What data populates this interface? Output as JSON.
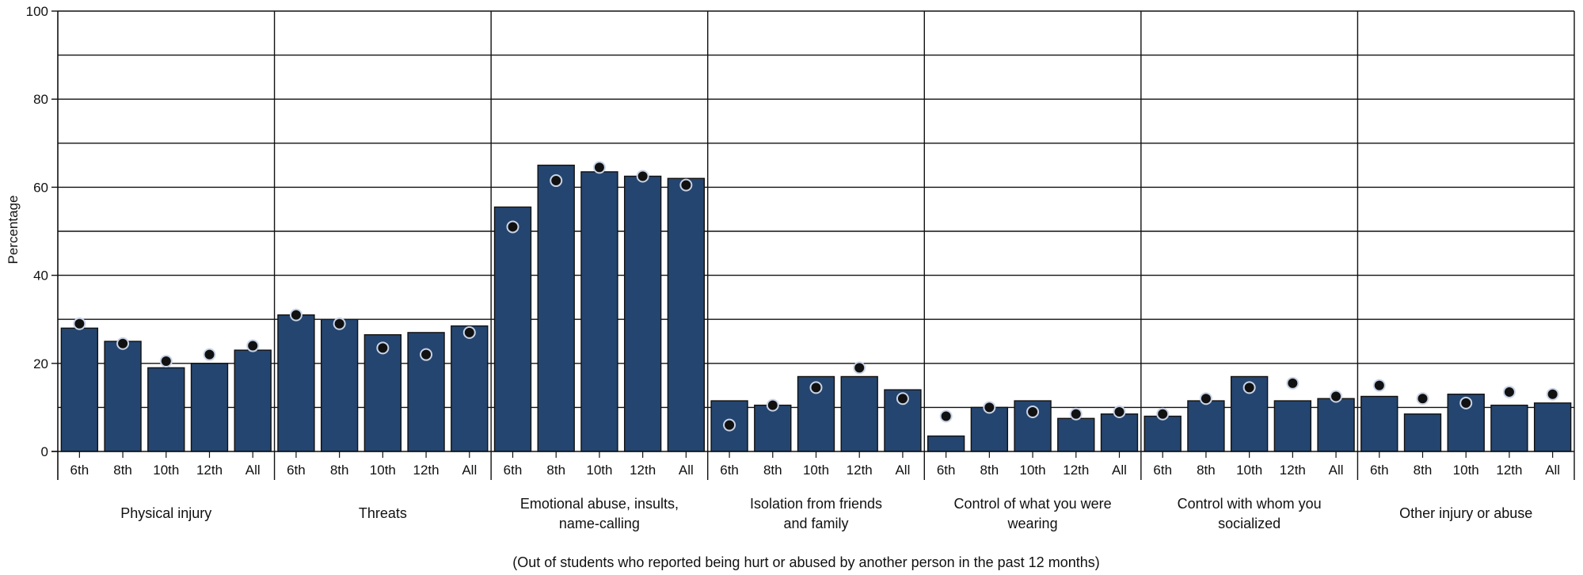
{
  "chart_data": {
    "type": "bar",
    "ylabel": "Percentage",
    "note": "(Out of students who reported being hurt or abused by another person in the past 12 months)",
    "ylim": [
      0,
      100
    ],
    "yticks": [
      0,
      20,
      40,
      60,
      80,
      100
    ],
    "grid": true,
    "subcategories": [
      "6th",
      "8th",
      "10th",
      "12th",
      "All"
    ],
    "groups": [
      {
        "label": [
          "Physical injury"
        ],
        "bars": [
          28,
          25,
          19,
          20,
          23
        ],
        "markers": [
          29,
          24.5,
          20.5,
          22,
          24
        ]
      },
      {
        "label": [
          "Threats"
        ],
        "bars": [
          31,
          30,
          26.5,
          27,
          28.5
        ],
        "markers": [
          31,
          29,
          23.5,
          22,
          27
        ]
      },
      {
        "label": [
          "Emotional abuse, insults,",
          "name-calling"
        ],
        "bars": [
          55.5,
          65,
          63.5,
          62.5,
          62
        ],
        "markers": [
          51,
          61.5,
          64.5,
          62.5,
          60.5
        ]
      },
      {
        "label": [
          "Isolation from friends",
          "and family"
        ],
        "bars": [
          11.5,
          10.5,
          17,
          17,
          14
        ],
        "markers": [
          6,
          10.5,
          14.5,
          19,
          12
        ]
      },
      {
        "label": [
          "Control of what you were",
          "wearing"
        ],
        "bars": [
          3.5,
          10,
          11.5,
          7.5,
          8.5
        ],
        "markers": [
          8,
          10,
          9,
          8.5,
          9
        ]
      },
      {
        "label": [
          "Control with whom you",
          "socialized"
        ],
        "bars": [
          8,
          11.5,
          17,
          11.5,
          12
        ],
        "markers": [
          8.5,
          12,
          14.5,
          15.5,
          12.5
        ]
      },
      {
        "label": [
          "Other injury or abuse"
        ],
        "bars": [
          12.5,
          8.5,
          13,
          10.5,
          11
        ],
        "markers": [
          15,
          12,
          11,
          13.5,
          13
        ]
      }
    ],
    "colors": {
      "bar": "#24456f",
      "bar_stroke": "#111111",
      "marker": "#111111",
      "marker_stroke": "#c9d3e6"
    }
  }
}
